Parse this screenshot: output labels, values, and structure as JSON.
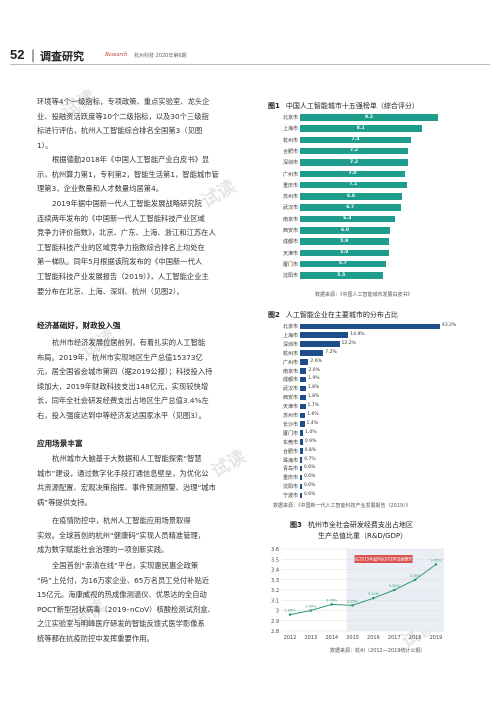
{
  "header": {
    "page_number": "52",
    "section": "调查研究",
    "research_label": "Research",
    "journal": "杭州科技  2020年第6期"
  },
  "paragraphs": {
    "p1": [
      "环境等4个一级指标，专项政策、重点实验室、龙头企",
      "业、投融资活跃度等10个二级指标，以及30个三级指",
      "标进行评估，杭州人工智能综合排名全国第3（见图",
      "1）。"
    ],
    "p2": [
      "根据德勤2018年《中国人工智能产业白皮书》显",
      "示，杭州算力第1，专利第2，智能生活第1，智能城市管",
      "理第3，企业数量和人才数量均居第4。"
    ],
    "p3": [
      "2019年据中国新一代人工智能发展战略研究院",
      "连续两年发布的《中国新一代人工智能科技产业区域",
      "竞争力评价指数》，北京、广东、上海、浙江和江苏在人",
      "工智能科技产业的区域竞争力指数综合排名上均处在",
      "第一梯队。同年5月根据该院发布的《中国新一代人",
      "工智能科技产业发展报告（2019）》，人工智能企业主",
      "要分布在北京、上海、深圳、杭州（见图2）。"
    ],
    "sec1": "经济基础好，财政投入强",
    "p4": [
      "杭州市经济发展位居前列，有着扎实的人工智能",
      "布局。2019年，杭州市实现地区生产总值15373亿",
      "元，居全国省会城市第四（据2019公报）；科技投入持",
      "续加大，2019年财政科技支出148亿元，实现较快增",
      "长，同年全社会研发经费支出占地区生产总值3.4%左",
      "右，投入强度达到中等经济发达国家水平（见图3）。"
    ],
    "sec2": "应用场景丰富",
    "p5": [
      "杭州城市大脑基于大数据和人工智能探索“智慧",
      "城市”建设，通过数字化手段打通信息壁垒，为优化公",
      "共资源配置、宏观决策指挥、事件预测预警、治理“城市",
      "病”等提供支持。"
    ],
    "p6": [
      "在疫情防控中，杭州人工智能应用场景取得",
      "实效。全球首创的杭州“健康码”实现人员精准管理，",
      "成为数字赋能社会治理的一项创新实践。"
    ],
    "p7": [
      "全国首创“亲清在线”平台，实现惠民惠企政策",
      "“码”上兑付，为16万家企业、65万名员工兑付补贴近",
      "15亿元。海康威视的热成像测温仪、优思达的全自动",
      "POCT新型冠状病毒（2019–nCoV）核酸检测试剂盒、",
      "之江实验室与明峰医疗研发的智能反馈式医学影像系",
      "统等都在抗疫防控中发挥重要作用。"
    ]
  },
  "fig1": {
    "label": "图1",
    "title": "中国人工智能城市十五强榜单（综合评分）",
    "source": "数据来源：《中国人工智能城市发展白皮书》",
    "color": "#1e9c8c"
  },
  "fig2": {
    "label": "图2",
    "title": "人工智能企业在主要城市的分布占比",
    "source": "数据来源：《中国新一代人工智能科技产业发展报告（2019）》",
    "color": "#1f4e8c"
  },
  "fig3": {
    "label": "图3",
    "title_line1": "杭州市全社会研发经费支出占地区",
    "title_line2": "生产总值比重（R&D/GDP）",
    "source": "数据来源：杭州（2012—2019统计公报）",
    "annotation": "在2015年起R&D/GDP迅速攀升",
    "color": "#2f9a78"
  },
  "chart_data": [
    {
      "type": "bar",
      "orientation": "horizontal",
      "categories": [
        "北京市",
        "上海市",
        "杭州市",
        "合肥市",
        "深圳市",
        "广州市",
        "重庆市",
        "苏州市",
        "武汉市",
        "南京市",
        "西安市",
        "成都市",
        "天津市",
        "厦门市",
        "沈阳市"
      ],
      "values": [
        9.2,
        8.1,
        7.4,
        7.2,
        7.2,
        7.0,
        7.1,
        6.8,
        6.7,
        6.3,
        6.0,
        5.9,
        5.9,
        5.7,
        5.5
      ],
      "value_labels": [
        "9.2",
        "8.1",
        "7.4",
        "7.2",
        "7.2",
        "7.0",
        "7.1",
        "6.8",
        "6.7",
        "6.3",
        "6.0",
        "5.9",
        "5.9",
        "5.7",
        "5.5"
      ]
    },
    {
      "type": "bar",
      "orientation": "horizontal",
      "categories": [
        "北京市",
        "上海市",
        "深圳市",
        "杭州市",
        "广州市",
        "南京市",
        "成都市",
        "武汉市",
        "西安市",
        "天津市",
        "苏州市",
        "长沙市",
        "厦门市",
        "东莞市",
        "合肥市",
        "珠海市",
        "青岛市",
        "重庆市",
        "沈阳市",
        "宁波市"
      ],
      "values": [
        43.2,
        14.9,
        12.2,
        7.2,
        2.6,
        2.0,
        1.9,
        1.8,
        1.8,
        1.7,
        1.6,
        1.4,
        1.0,
        0.9,
        0.8,
        0.7,
        0.6,
        0.6,
        0.6,
        0.6
      ],
      "value_labels": [
        "43.2%",
        "14.9%",
        "12.2%",
        "7.2%",
        "2.6%",
        "2.0%",
        "1.9%",
        "1.8%",
        "1.8%",
        "1.7%",
        "1.6%",
        "1.4%",
        "1.0%",
        "0.9%",
        "0.8%",
        "0.7%",
        "0.6%",
        "0.6%",
        "0.6%",
        "0.6%"
      ]
    },
    {
      "type": "line",
      "x": [
        "2012",
        "2013",
        "2014",
        "2015",
        "2016",
        "2017",
        "2018",
        "2019"
      ],
      "values": [
        2.96,
        3.0,
        3.06,
        3.05,
        3.12,
        3.2,
        3.3,
        3.45
      ],
      "value_labels": [
        "2.96%",
        "3.00%",
        "3.06%",
        "3.05%",
        "3.12%",
        "3.20%",
        "3.30%",
        "3.45%"
      ],
      "ylim": [
        2.8,
        3.6
      ],
      "yticks": [
        "3.6",
        "3.5",
        "3.4",
        "3.3",
        "3.2",
        "3.1",
        "3",
        "2.9",
        "2.8"
      ]
    }
  ]
}
